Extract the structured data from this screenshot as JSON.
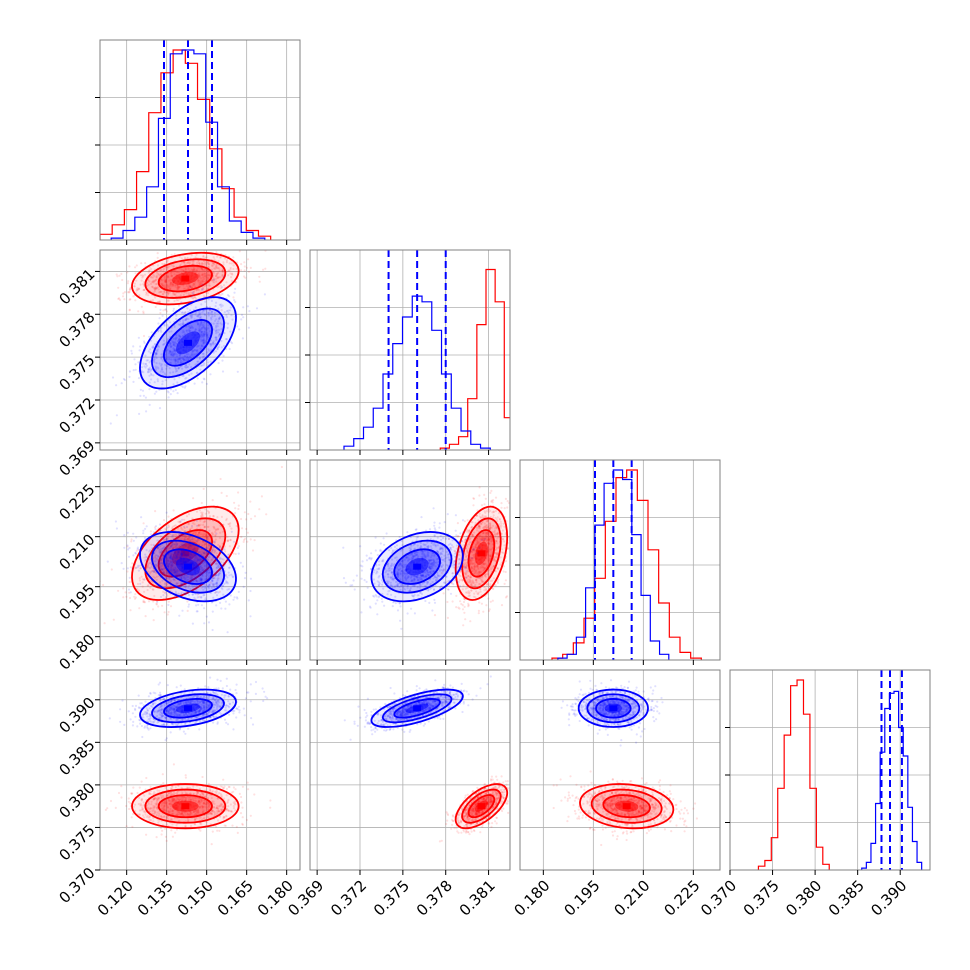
{
  "colors": {
    "red": "#ff0000",
    "blue": "#0000ff",
    "grid": "#b0b0b0",
    "frame": "#808080"
  },
  "chart_data": {
    "type": "corner",
    "title": "",
    "grid": true,
    "params": [
      {
        "range": [
          0.11,
          0.185
        ],
        "ticks": [
          "0.120",
          "0.135",
          "0.150",
          "0.165",
          "0.180"
        ]
      },
      {
        "range": [
          0.3685,
          0.3825
        ],
        "ticks": [
          "0.369",
          "0.372",
          "0.375",
          "0.378",
          "0.381"
        ]
      },
      {
        "range": [
          0.173,
          0.233
        ],
        "ticks": [
          "0.180",
          "0.195",
          "0.210",
          "0.225"
        ]
      },
      {
        "range": [
          0.37,
          0.3935
        ],
        "ticks": [
          "0.370",
          "0.375",
          "0.380",
          "0.385",
          "0.390"
        ]
      }
    ],
    "series": [
      {
        "color": "red",
        "mean": [
          0.142,
          0.3805,
          0.205,
          0.3775
        ],
        "sigma": [
          0.01,
          0.0009,
          0.007,
          0.0013
        ],
        "corr": {
          "0-1": 0.3,
          "0-2": 0.5,
          "0-3": 0.0,
          "1-2": 0.35,
          "1-3": 0.6,
          "2-3": -0.15
        }
      },
      {
        "color": "blue",
        "mean": [
          0.143,
          0.376,
          0.201,
          0.389
        ],
        "sigma": [
          0.009,
          0.0016,
          0.0052,
          0.0011
        ],
        "corr": {
          "0-1": 0.55,
          "0-2": -0.35,
          "0-3": 0.35,
          "1-2": 0.3,
          "1-3": 0.65,
          "2-3": 0.0
        }
      }
    ],
    "quantile_lines": {
      "color": "blue",
      "values": [
        [
          0.134,
          0.143,
          0.152
        ],
        [
          0.374,
          0.376,
          0.378
        ],
        [
          0.1955,
          0.201,
          0.2065
        ],
        [
          0.3878,
          0.3888,
          0.3902
        ]
      ]
    },
    "hist_peak_fraction": [
      {
        "red": [
          0.03,
          0.08,
          0.16,
          0.36,
          0.67,
          0.88,
          1.0,
          0.93,
          0.74,
          0.48,
          0.27,
          0.12,
          0.05,
          0.02
        ],
        "blue": [
          0.01,
          0.05,
          0.12,
          0.28,
          0.64,
          0.98,
          1.0,
          0.98,
          0.62,
          0.28,
          0.1,
          0.04,
          0.01
        ]
      },
      {
        "blue": [
          0.02,
          0.06,
          0.12,
          0.22,
          0.4,
          0.56,
          0.7,
          0.81,
          0.78,
          0.63,
          0.4,
          0.22,
          0.1,
          0.03,
          0.01
        ],
        "red": [
          0.01,
          0.03,
          0.07,
          0.27,
          0.66,
          0.95,
          0.78,
          0.17,
          0.01
        ]
      },
      {
        "blue": [
          0.01,
          0.03,
          0.12,
          0.38,
          0.71,
          0.93,
          1.0,
          0.95,
          0.66,
          0.34,
          0.1,
          0.03
        ],
        "red": [
          0.01,
          0.03,
          0.09,
          0.22,
          0.43,
          0.73,
          0.96,
          1.0,
          0.84,
          0.58,
          0.3,
          0.12,
          0.04,
          0.01
        ]
      },
      {
        "red": [
          0.02,
          0.05,
          0.17,
          0.43,
          0.71,
          0.97,
          1.0,
          0.82,
          0.43,
          0.12,
          0.03
        ],
        "blue": [
          0.01,
          0.04,
          0.14,
          0.35,
          0.62,
          0.85,
          0.93,
          0.94,
          0.75,
          0.6,
          0.33,
          0.15,
          0.04
        ]
      }
    ]
  }
}
